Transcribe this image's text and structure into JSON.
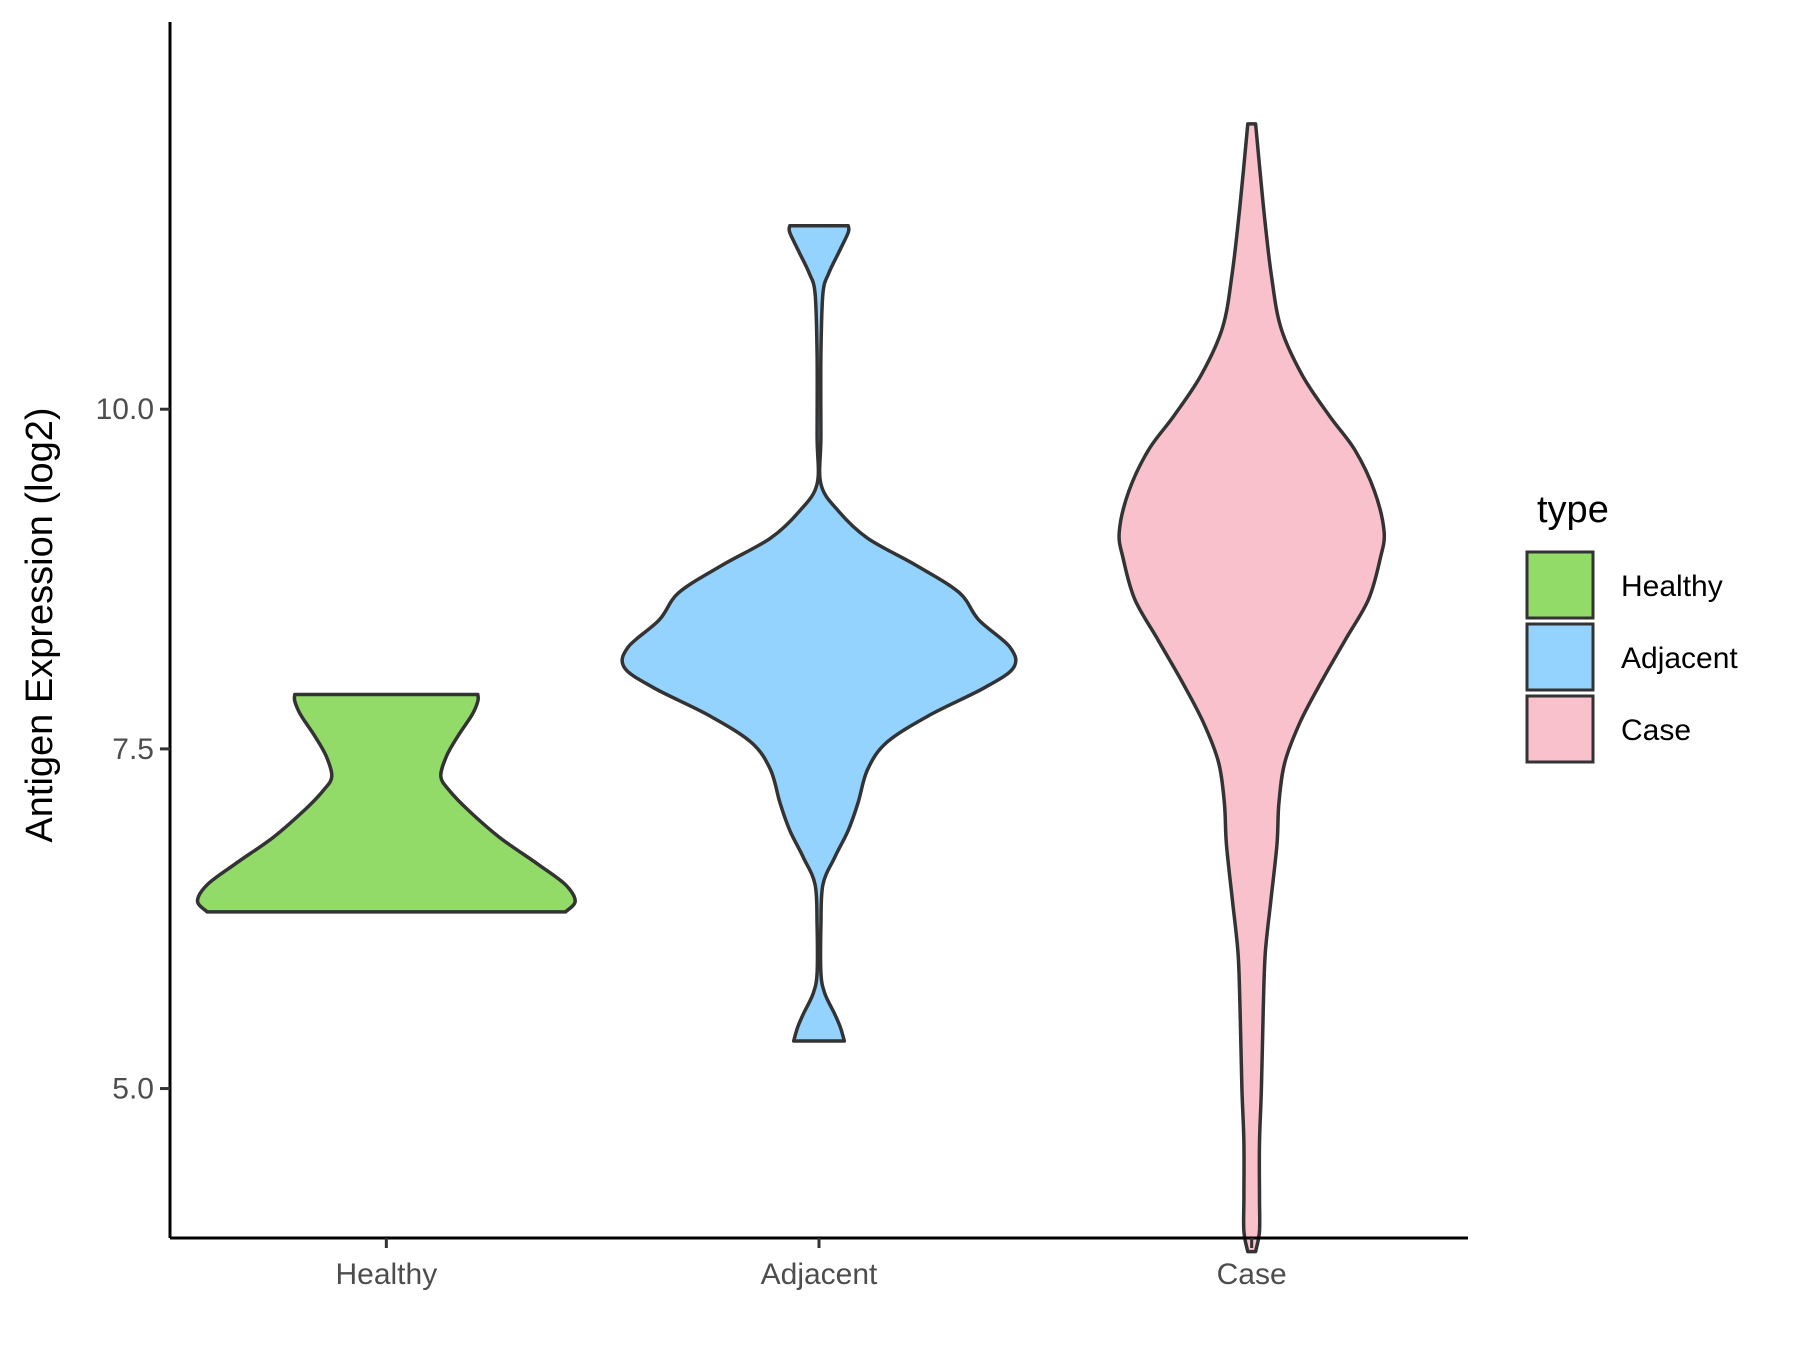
{
  "chart_data": {
    "type": "violin",
    "ylabel": "Antigen Expression (log2)",
    "xlabel": "",
    "ylim": [
      3.9,
      12.85
    ],
    "yticks": [
      5.0,
      7.5,
      10.0
    ],
    "ytick_labels": [
      "5.0",
      "7.5",
      "10.0"
    ],
    "categories": [
      "Healthy",
      "Adjacent",
      "Case"
    ],
    "legend": {
      "title": "type",
      "position": "right",
      "entries": [
        "Healthy",
        "Adjacent",
        "Case"
      ]
    },
    "series": [
      {
        "name": "Healthy",
        "color": "#93db69",
        "range": [
          6.3,
          7.9
        ],
        "profile": [
          [
            6.3,
            0.92
          ],
          [
            6.38,
            0.97
          ],
          [
            6.5,
            0.92
          ],
          [
            6.65,
            0.78
          ],
          [
            6.85,
            0.58
          ],
          [
            7.05,
            0.42
          ],
          [
            7.2,
            0.32
          ],
          [
            7.3,
            0.28
          ],
          [
            7.45,
            0.31
          ],
          [
            7.6,
            0.37
          ],
          [
            7.75,
            0.44
          ],
          [
            7.85,
            0.47
          ],
          [
            7.9,
            0.47
          ]
        ]
      },
      {
        "name": "Adjacent",
        "color": "#93d3fe",
        "range": [
          5.35,
          11.35
        ],
        "profile": [
          [
            5.35,
            0.13
          ],
          [
            5.45,
            0.11
          ],
          [
            5.55,
            0.08
          ],
          [
            5.7,
            0.03
          ],
          [
            5.85,
            0.01
          ],
          [
            6.2,
            0.01
          ],
          [
            6.5,
            0.02
          ],
          [
            6.7,
            0.08
          ],
          [
            6.9,
            0.15
          ],
          [
            7.1,
            0.2
          ],
          [
            7.35,
            0.25
          ],
          [
            7.55,
            0.35
          ],
          [
            7.75,
            0.57
          ],
          [
            7.95,
            0.85
          ],
          [
            8.1,
            1.0
          ],
          [
            8.25,
            0.98
          ],
          [
            8.45,
            0.82
          ],
          [
            8.65,
            0.72
          ],
          [
            8.85,
            0.5
          ],
          [
            9.05,
            0.25
          ],
          [
            9.25,
            0.1
          ],
          [
            9.45,
            0.01
          ],
          [
            9.8,
            0.01
          ],
          [
            10.4,
            0.01
          ],
          [
            10.85,
            0.02
          ],
          [
            11.0,
            0.05
          ],
          [
            11.15,
            0.1
          ],
          [
            11.3,
            0.15
          ],
          [
            11.35,
            0.15
          ]
        ]
      },
      {
        "name": "Case",
        "color": "#f8c1cc",
        "range": [
          3.8,
          12.1
        ],
        "profile": [
          [
            3.8,
            0.02
          ],
          [
            3.95,
            0.04
          ],
          [
            4.2,
            0.04
          ],
          [
            4.6,
            0.04
          ],
          [
            5.0,
            0.05
          ],
          [
            5.6,
            0.06
          ],
          [
            6.0,
            0.07
          ],
          [
            6.4,
            0.1
          ],
          [
            6.8,
            0.13
          ],
          [
            7.1,
            0.14
          ],
          [
            7.4,
            0.17
          ],
          [
            7.7,
            0.25
          ],
          [
            8.0,
            0.36
          ],
          [
            8.3,
            0.48
          ],
          [
            8.6,
            0.6
          ],
          [
            8.9,
            0.66
          ],
          [
            9.1,
            0.68
          ],
          [
            9.4,
            0.63
          ],
          [
            9.7,
            0.53
          ],
          [
            9.95,
            0.4
          ],
          [
            10.25,
            0.26
          ],
          [
            10.6,
            0.15
          ],
          [
            11.0,
            0.1
          ],
          [
            11.5,
            0.06
          ],
          [
            12.1,
            0.02
          ]
        ]
      }
    ]
  }
}
